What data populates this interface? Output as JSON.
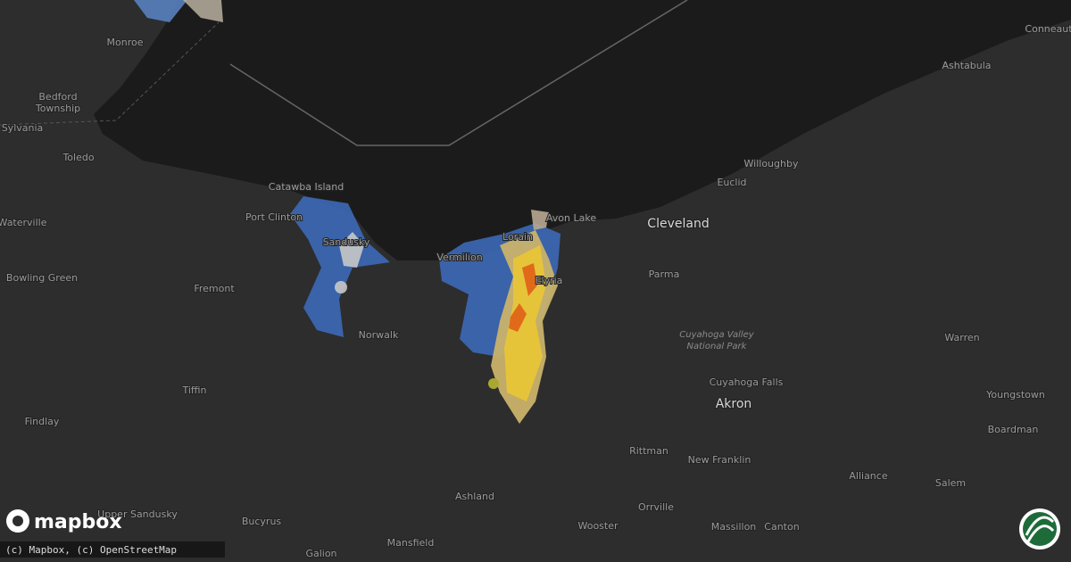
{
  "map": {
    "labels": [
      "Monroe",
      "Sylvania",
      "Toledo",
      "Waterville",
      "Bowling Green",
      "Fremont",
      "Catawba Island",
      "Port Clinton",
      "Sandusky",
      "Vermilion",
      "Lorain",
      "Avon Lake",
      "Elyria",
      "Norwalk",
      "Tiffin",
      "Findlay",
      "Parma",
      "Euclid",
      "Willoughby",
      "Ashtabula",
      "Conneaut",
      "Cuyahoga Falls",
      "Warren",
      "Youngstown",
      "Boardman",
      "Rittman",
      "New Franklin",
      "Alliance",
      "Salem",
      "Ashland",
      "Orrville",
      "Wooster",
      "Massillon",
      "Canton",
      "Upper Sandusky",
      "Bucyrus",
      "Mansfield",
      "Galion"
    ],
    "major_labels": [
      "Cleveland",
      "Akron"
    ],
    "multiline_labels": [
      [
        "Bedford",
        "Township"
      ]
    ],
    "park_label": [
      "Cuyahoga Valley",
      "National Park"
    ]
  },
  "footer": {
    "logo": "mapbox",
    "attribution": "(c) Mapbox, (c) OpenStreetMap"
  }
}
